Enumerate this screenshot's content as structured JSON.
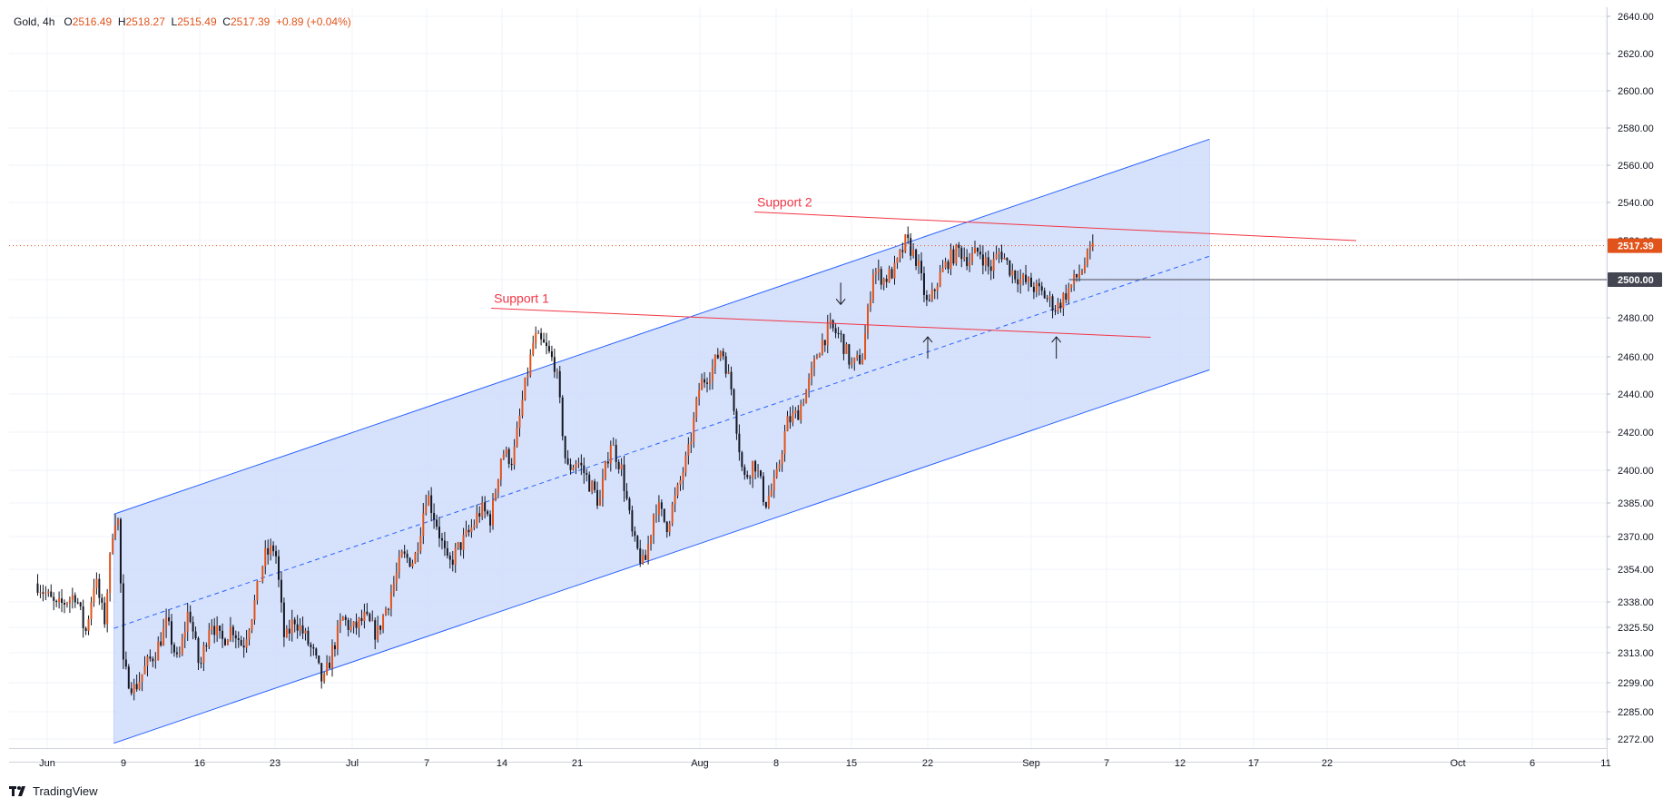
{
  "header": {
    "symbol": "Gold",
    "interval": "4h",
    "open_label": "O",
    "open": "2516.49",
    "high_label": "H",
    "high": "2518.27",
    "low_label": "L",
    "low": "2515.49",
    "close_label": "C",
    "close": "2517.39",
    "change": "+0.89 (+0.04%)"
  },
  "brand": {
    "name": "TradingView"
  },
  "colors": {
    "up": "#e0531a",
    "down": "#131722",
    "channel_fill": "#cfdcfb",
    "channel_line": "#2962ff",
    "support_line": "#f23645",
    "price_badge": "#e0531a",
    "level_badge": "#434651"
  },
  "chart_data": {
    "type": "candlestick",
    "symbol": "Gold",
    "interval": "4h",
    "y_axis_ticks": [
      "2640.00",
      "2620.00",
      "2600.00",
      "2580.00",
      "2560.00",
      "2540.00",
      "2520.00",
      "2500.00",
      "2480.00",
      "2460.00",
      "2440.00",
      "2420.00",
      "2400.00",
      "2385.00",
      "2370.00",
      "2354.00",
      "2338.00",
      "2325.50",
      "2313.00",
      "2299.00",
      "2285.00",
      "2272.00"
    ],
    "x_axis_ticks": [
      {
        "label": "Jun",
        "date": "2024-06-01"
      },
      {
        "label": "9",
        "date": "2024-06-09"
      },
      {
        "label": "16",
        "date": "2024-06-16"
      },
      {
        "label": "23",
        "date": "2024-06-23"
      },
      {
        "label": "Jul",
        "date": "2024-07-01"
      },
      {
        "label": "7",
        "date": "2024-07-07"
      },
      {
        "label": "14",
        "date": "2024-07-14"
      },
      {
        "label": "21",
        "date": "2024-07-21"
      },
      {
        "label": "Aug",
        "date": "2024-08-01"
      },
      {
        "label": "8",
        "date": "2024-08-08"
      },
      {
        "label": "15",
        "date": "2024-08-15"
      },
      {
        "label": "22",
        "date": "2024-08-22"
      },
      {
        "label": "Sep",
        "date": "2024-09-01"
      },
      {
        "label": "7",
        "date": "2024-09-07"
      },
      {
        "label": "12",
        "date": "2024-09-12"
      },
      {
        "label": "17",
        "date": "2024-09-17"
      },
      {
        "label": "22",
        "date": "2024-09-22"
      },
      {
        "label": "Oct",
        "date": "2024-10-01"
      },
      {
        "label": "6",
        "date": "2024-10-06"
      },
      {
        "label": "11",
        "date": "2024-10-11"
      }
    ],
    "last_price": "2517.39",
    "horizontal_level": "2500.00",
    "path": [
      [
        "2024-05-31",
        2347
      ],
      [
        "2024-06-02",
        2335
      ],
      [
        "2024-06-04",
        2342
      ],
      [
        "2024-06-05",
        2322
      ],
      [
        "2024-06-06",
        2350
      ],
      [
        "2024-06-07",
        2328
      ],
      [
        "2024-06-08",
        2380
      ],
      [
        "2024-06-08T12",
        2376
      ],
      [
        "2024-06-09",
        2305
      ],
      [
        "2024-06-10",
        2296
      ],
      [
        "2024-06-11",
        2306
      ],
      [
        "2024-06-12",
        2314
      ],
      [
        "2024-06-13",
        2328
      ],
      [
        "2024-06-14",
        2307
      ],
      [
        "2024-06-15",
        2335
      ],
      [
        "2024-06-16",
        2305
      ],
      [
        "2024-06-17",
        2330
      ],
      [
        "2024-06-18",
        2318
      ],
      [
        "2024-06-19",
        2326
      ],
      [
        "2024-06-20",
        2316
      ],
      [
        "2024-06-21",
        2335
      ],
      [
        "2024-06-22",
        2360
      ],
      [
        "2024-06-23",
        2365
      ],
      [
        "2024-06-24",
        2318
      ],
      [
        "2024-06-25",
        2330
      ],
      [
        "2024-06-26",
        2322
      ],
      [
        "2024-06-27",
        2312
      ],
      [
        "2024-06-28",
        2298
      ],
      [
        "2024-06-29",
        2315
      ],
      [
        "2024-06-30",
        2330
      ],
      [
        "2024-07-01",
        2324
      ],
      [
        "2024-07-02",
        2330
      ],
      [
        "2024-07-03",
        2322
      ],
      [
        "2024-07-04",
        2340
      ],
      [
        "2024-07-05",
        2360
      ],
      [
        "2024-07-06",
        2358
      ],
      [
        "2024-07-07",
        2390
      ],
      [
        "2024-07-08",
        2375
      ],
      [
        "2024-07-09",
        2355
      ],
      [
        "2024-07-10",
        2365
      ],
      [
        "2024-07-11",
        2372
      ],
      [
        "2024-07-12",
        2382
      ],
      [
        "2024-07-13",
        2378
      ],
      [
        "2024-07-14",
        2410
      ],
      [
        "2024-07-15",
        2405
      ],
      [
        "2024-07-16",
        2440
      ],
      [
        "2024-07-17",
        2470
      ],
      [
        "2024-07-18",
        2465
      ],
      [
        "2024-07-19",
        2455
      ],
      [
        "2024-07-20",
        2400
      ],
      [
        "2024-07-21",
        2405
      ],
      [
        "2024-07-22",
        2395
      ],
      [
        "2024-07-23",
        2385
      ],
      [
        "2024-07-24",
        2415
      ],
      [
        "2024-07-25",
        2400
      ],
      [
        "2024-07-26",
        2368
      ],
      [
        "2024-07-27",
        2355
      ],
      [
        "2024-07-28",
        2385
      ],
      [
        "2024-07-29",
        2375
      ],
      [
        "2024-07-30",
        2390
      ],
      [
        "2024-07-31",
        2410
      ],
      [
        "2024-08-01",
        2445
      ],
      [
        "2024-08-02",
        2452
      ],
      [
        "2024-08-03",
        2465
      ],
      [
        "2024-08-04",
        2440
      ],
      [
        "2024-08-05",
        2395
      ],
      [
        "2024-08-06",
        2405
      ],
      [
        "2024-08-07",
        2385
      ],
      [
        "2024-08-08",
        2395
      ],
      [
        "2024-08-09",
        2425
      ],
      [
        "2024-08-10",
        2430
      ],
      [
        "2024-08-11",
        2445
      ],
      [
        "2024-08-12",
        2465
      ],
      [
        "2024-08-13",
        2475
      ],
      [
        "2024-08-14",
        2470
      ],
      [
        "2024-08-15",
        2455
      ],
      [
        "2024-08-16",
        2460
      ],
      [
        "2024-08-17",
        2505
      ],
      [
        "2024-08-18",
        2500
      ],
      [
        "2024-08-19",
        2505
      ],
      [
        "2024-08-20",
        2520
      ],
      [
        "2024-08-21",
        2510
      ],
      [
        "2024-08-22",
        2485
      ],
      [
        "2024-08-23",
        2500
      ],
      [
        "2024-08-24",
        2510
      ],
      [
        "2024-08-25",
        2515
      ],
      [
        "2024-08-26",
        2510
      ],
      [
        "2024-08-27",
        2515
      ],
      [
        "2024-08-28",
        2505
      ],
      [
        "2024-08-29",
        2515
      ],
      [
        "2024-08-30",
        2505
      ],
      [
        "2024-08-31",
        2500
      ],
      [
        "2024-09-01",
        2497
      ],
      [
        "2024-09-02",
        2492
      ],
      [
        "2024-09-03",
        2485
      ],
      [
        "2024-09-04",
        2495
      ],
      [
        "2024-09-05",
        2505
      ],
      [
        "2024-09-06",
        2517
      ]
    ],
    "annotations": [
      {
        "text": "Support 1",
        "start": [
          "2024-07-13",
          2485
        ],
        "end": [
          "2024-09-10",
          2470
        ]
      },
      {
        "text": "Support 2",
        "start": [
          "2024-08-06",
          2535
        ],
        "end": [
          "2024-09-24",
          2520
        ]
      }
    ],
    "regression_channel": {
      "start_date": "2024-06-08",
      "end_date": "2024-09-14",
      "upper": [
        2380,
        2574
      ],
      "middle": [
        2325,
        2512
      ],
      "lower": [
        2270,
        2453
      ]
    },
    "markers": [
      {
        "type": "arrow-down",
        "date": "2024-08-14",
        "price": 2487
      },
      {
        "type": "arrow-up",
        "date": "2024-08-22",
        "price": 2459
      },
      {
        "type": "arrow-up",
        "date": "2024-09-03",
        "price": 2459
      }
    ]
  }
}
